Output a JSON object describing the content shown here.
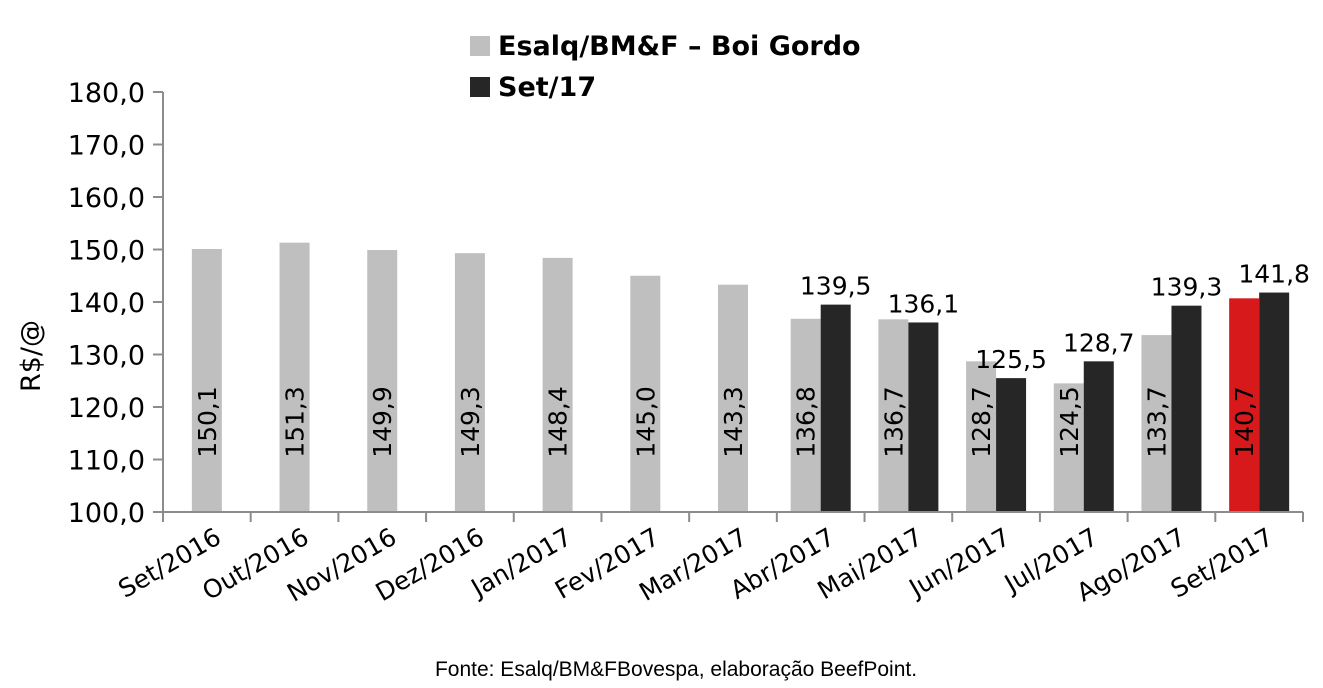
{
  "chart_data": {
    "type": "bar",
    "ylabel": "R$/@",
    "ylim": [
      100,
      180
    ],
    "ytick_step": 10,
    "ytick_labels": [
      "100,0",
      "110,0",
      "120,0",
      "130,0",
      "140,0",
      "150,0",
      "160,0",
      "170,0",
      "180,0"
    ],
    "grid": false,
    "legend_position": "top-center",
    "categories": [
      "Set/2016",
      "Out/2016",
      "Nov/2016",
      "Dez/2016",
      "Jan/2017",
      "Fev/2017",
      "Mar/2017",
      "Abr/2017",
      "Mai/2017",
      "Jun/2017",
      "Jul/2017",
      "Ago/2017",
      "Set/2017"
    ],
    "series": [
      {
        "name": "Esalq/BM&F – Boi Gordo",
        "color": "#bfbfbf",
        "values": [
          150.1,
          151.3,
          149.9,
          149.3,
          148.4,
          145.0,
          143.3,
          136.8,
          136.7,
          128.7,
          124.5,
          133.7,
          140.7
        ],
        "labels": [
          "150,1",
          "151,3",
          "149,9",
          "149,3",
          "148,4",
          "145,0",
          "143,3",
          "136,8",
          "136,7",
          "128,7",
          "124,5",
          "133,7",
          "140,7"
        ],
        "highlight": {
          "index": 12,
          "color": "#d7191c"
        }
      },
      {
        "name": "Set/17",
        "color": "#262626",
        "values": [
          null,
          null,
          null,
          null,
          null,
          null,
          null,
          139.5,
          136.1,
          125.5,
          128.7,
          139.3,
          141.8
        ],
        "labels": [
          null,
          null,
          null,
          null,
          null,
          null,
          null,
          "139,5",
          "136,1",
          "125,5",
          "128,7",
          "139,3",
          "141,8"
        ]
      }
    ],
    "source": "Fonte: Esalq/BM&FBovespa, elaboração BeefPoint."
  }
}
